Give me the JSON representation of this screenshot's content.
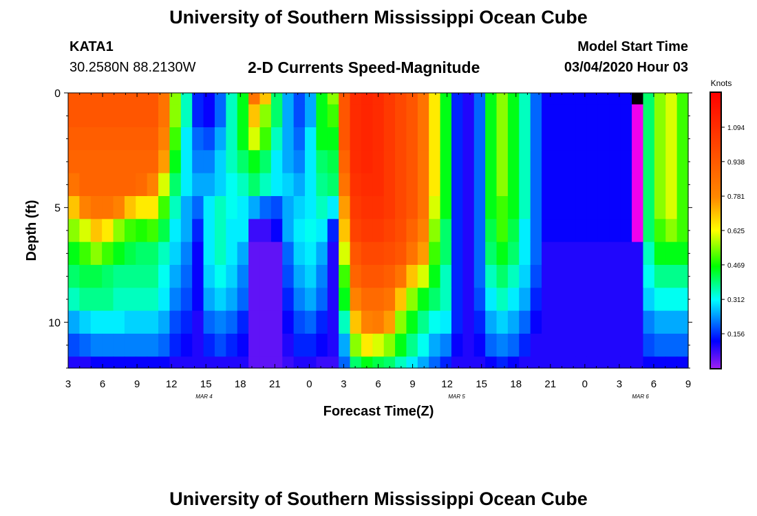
{
  "header": {
    "title": "University of Southern Mississippi Ocean Cube",
    "station_id": "KATA1",
    "station_coords": "30.2580N 88.2130W",
    "plot_title": "2-D Currents Speed-Magnitude",
    "model_start_label": "Model Start Time",
    "model_start_value": "03/04/2020 Hour 03"
  },
  "footer": {
    "title": "University of Southern Mississippi Ocean Cube"
  },
  "chart_data": {
    "type": "heatmap",
    "title": "2-D Currents Speed-Magnitude",
    "xlabel": "Forecast Time(Z)",
    "ylabel": "Depth (ft)",
    "x_start_hour": 3,
    "x_hours": 54,
    "x_tick_labels": [
      "3",
      "6",
      "9",
      "12",
      "15",
      "18",
      "21",
      "0",
      "3",
      "6",
      "9",
      "12",
      "15",
      "18",
      "21",
      "0",
      "3",
      "6",
      "9"
    ],
    "date_labels": [
      {
        "label": "MAR 4",
        "at_hour": 11
      },
      {
        "label": "MAR 5",
        "at_hour": 33
      },
      {
        "label": "MAR 6",
        "at_hour": 49
      }
    ],
    "y_ticks": [
      0,
      5,
      10
    ],
    "ylim": [
      0,
      12
    ],
    "y_inverted": true,
    "colorbar": {
      "title": "Knots",
      "tick_labels": [
        "1.094",
        "0.938",
        "0.781",
        "0.625",
        "0.469",
        "0.312",
        "0.156"
      ],
      "range": [
        0.0,
        1.25
      ]
    },
    "value_unit": "Knots",
    "depth_bands": [
      {
        "from": 0,
        "to": 0.5
      },
      {
        "from": 0.5,
        "to": 1.5
      },
      {
        "from": 1.5,
        "to": 2.5
      },
      {
        "from": 2.5,
        "to": 3.5
      },
      {
        "from": 3.5,
        "to": 4.5
      },
      {
        "from": 4.5,
        "to": 5.5
      },
      {
        "from": 5.5,
        "to": 6.5
      },
      {
        "from": 6.5,
        "to": 7.5
      },
      {
        "from": 7.5,
        "to": 8.5
      },
      {
        "from": 8.5,
        "to": 9.5
      },
      {
        "from": 9.5,
        "to": 10.5
      },
      {
        "from": 10.5,
        "to": 11.5
      },
      {
        "from": 11.5,
        "to": 12
      }
    ],
    "values": [
      [
        0.95,
        0.95,
        0.95,
        0.95,
        0.95,
        0.95,
        0.95,
        0.95,
        0.85,
        0.55,
        0.35,
        0.15,
        0.12,
        0.2,
        0.35,
        0.45,
        0.85,
        0.7,
        0.4,
        0.25,
        0.18,
        0.25,
        0.45,
        0.55,
        0.95,
        1.1,
        1.12,
        1.1,
        1.05,
        1.0,
        0.95,
        0.85,
        0.65,
        0.45,
        0.15,
        0.1,
        0.2,
        0.45,
        0.55,
        0.45,
        0.35,
        0.2,
        0.12,
        0.12,
        0.12,
        0.12,
        0.12,
        0.12,
        0.12,
        0.12,
        0.12,
        0.4,
        0.55,
        0.6,
        0.5
      ],
      [
        0.95,
        0.95,
        0.95,
        0.95,
        0.95,
        0.95,
        0.95,
        0.95,
        0.85,
        0.55,
        0.35,
        0.15,
        0.12,
        0.2,
        0.35,
        0.45,
        0.7,
        0.55,
        0.4,
        0.25,
        0.18,
        0.25,
        0.45,
        0.5,
        0.95,
        1.1,
        1.12,
        1.1,
        1.05,
        1.0,
        0.95,
        0.85,
        0.65,
        0.45,
        0.15,
        0.1,
        0.2,
        0.45,
        0.55,
        0.45,
        0.35,
        0.2,
        0.12,
        0.12,
        0.12,
        0.12,
        0.12,
        0.12,
        0.12,
        0.12,
        0.12,
        0.4,
        0.55,
        0.6,
        0.5
      ],
      [
        0.92,
        0.92,
        0.92,
        0.92,
        0.92,
        0.92,
        0.92,
        0.92,
        0.8,
        0.5,
        0.3,
        0.2,
        0.18,
        0.25,
        0.35,
        0.45,
        0.6,
        0.5,
        0.35,
        0.25,
        0.2,
        0.3,
        0.45,
        0.45,
        0.95,
        1.1,
        1.12,
        1.1,
        1.05,
        1.0,
        0.95,
        0.85,
        0.65,
        0.45,
        0.15,
        0.1,
        0.2,
        0.45,
        0.55,
        0.45,
        0.35,
        0.2,
        0.12,
        0.12,
        0.12,
        0.12,
        0.12,
        0.12,
        0.12,
        0.12,
        0.12,
        0.4,
        0.55,
        0.6,
        0.5
      ],
      [
        0.9,
        0.9,
        0.9,
        0.9,
        0.9,
        0.9,
        0.9,
        0.9,
        0.75,
        0.45,
        0.3,
        0.22,
        0.22,
        0.28,
        0.35,
        0.4,
        0.45,
        0.4,
        0.3,
        0.25,
        0.22,
        0.3,
        0.4,
        0.42,
        0.9,
        1.1,
        1.12,
        1.1,
        1.05,
        1.0,
        0.95,
        0.85,
        0.65,
        0.45,
        0.15,
        0.1,
        0.2,
        0.45,
        0.55,
        0.45,
        0.35,
        0.2,
        0.12,
        0.12,
        0.12,
        0.12,
        0.12,
        0.12,
        0.12,
        0.12,
        0.12,
        0.4,
        0.55,
        0.6,
        0.5
      ],
      [
        0.85,
        0.9,
        0.9,
        0.9,
        0.9,
        0.9,
        0.88,
        0.8,
        0.6,
        0.4,
        0.3,
        0.25,
        0.25,
        0.28,
        0.32,
        0.35,
        0.4,
        0.35,
        0.3,
        0.28,
        0.25,
        0.3,
        0.38,
        0.4,
        0.85,
        1.08,
        1.1,
        1.1,
        1.05,
        1.0,
        0.95,
        0.85,
        0.65,
        0.45,
        0.15,
        0.1,
        0.2,
        0.45,
        0.55,
        0.45,
        0.35,
        0.2,
        0.12,
        0.12,
        0.12,
        0.12,
        0.12,
        0.12,
        0.12,
        0.12,
        0.12,
        0.4,
        0.55,
        0.6,
        0.5
      ],
      [
        0.7,
        0.8,
        0.85,
        0.85,
        0.8,
        0.7,
        0.65,
        0.65,
        0.5,
        0.35,
        0.25,
        0.2,
        0.3,
        0.35,
        0.32,
        0.3,
        0.25,
        0.2,
        0.18,
        0.25,
        0.28,
        0.3,
        0.35,
        0.3,
        0.75,
        1.05,
        1.08,
        1.08,
        1.05,
        1.0,
        0.95,
        0.85,
        0.6,
        0.45,
        0.15,
        0.1,
        0.2,
        0.45,
        0.5,
        0.45,
        0.35,
        0.2,
        0.12,
        0.12,
        0.12,
        0.12,
        0.12,
        0.12,
        0.12,
        0.12,
        0.12,
        0.4,
        0.55,
        0.6,
        0.5
      ],
      [
        0.55,
        0.6,
        0.7,
        0.65,
        0.55,
        0.5,
        0.48,
        0.5,
        0.42,
        0.3,
        0.25,
        0.15,
        0.3,
        0.35,
        0.3,
        0.3,
        0.08,
        0.08,
        0.12,
        0.25,
        0.3,
        0.32,
        0.3,
        0.15,
        0.7,
        1.02,
        1.05,
        1.05,
        1.02,
        0.98,
        0.9,
        0.8,
        0.55,
        0.4,
        0.15,
        0.1,
        0.2,
        0.42,
        0.5,
        0.42,
        0.3,
        0.2,
        0.12,
        0.12,
        0.12,
        0.12,
        0.12,
        0.12,
        0.12,
        0.12,
        0.12,
        0.4,
        0.5,
        0.55,
        0.5
      ],
      [
        0.45,
        0.5,
        0.55,
        0.5,
        0.45,
        0.42,
        0.4,
        0.4,
        0.35,
        0.28,
        0.22,
        0.12,
        0.3,
        0.35,
        0.3,
        0.25,
        0.05,
        0.05,
        0.05,
        0.2,
        0.28,
        0.3,
        0.25,
        0.1,
        0.6,
        0.95,
        1.0,
        1.0,
        0.98,
        0.95,
        0.85,
        0.75,
        0.5,
        0.4,
        0.15,
        0.1,
        0.2,
        0.4,
        0.45,
        0.4,
        0.3,
        0.2,
        0.1,
        0.1,
        0.1,
        0.1,
        0.1,
        0.1,
        0.1,
        0.1,
        0.1,
        0.35,
        0.45,
        0.45,
        0.45
      ],
      [
        0.4,
        0.42,
        0.42,
        0.4,
        0.38,
        0.38,
        0.38,
        0.38,
        0.32,
        0.25,
        0.2,
        0.12,
        0.28,
        0.32,
        0.28,
        0.22,
        0.05,
        0.05,
        0.05,
        0.18,
        0.25,
        0.28,
        0.22,
        0.1,
        0.5,
        0.9,
        0.95,
        0.95,
        0.92,
        0.85,
        0.7,
        0.6,
        0.45,
        0.35,
        0.15,
        0.1,
        0.2,
        0.35,
        0.4,
        0.35,
        0.28,
        0.18,
        0.1,
        0.1,
        0.1,
        0.1,
        0.1,
        0.1,
        0.1,
        0.1,
        0.1,
        0.32,
        0.38,
        0.38,
        0.38
      ],
      [
        0.35,
        0.38,
        0.38,
        0.38,
        0.35,
        0.35,
        0.35,
        0.35,
        0.3,
        0.22,
        0.18,
        0.12,
        0.25,
        0.28,
        0.25,
        0.2,
        0.05,
        0.05,
        0.05,
        0.15,
        0.22,
        0.25,
        0.2,
        0.1,
        0.45,
        0.8,
        0.88,
        0.88,
        0.85,
        0.7,
        0.55,
        0.45,
        0.4,
        0.35,
        0.15,
        0.1,
        0.18,
        0.3,
        0.35,
        0.3,
        0.25,
        0.15,
        0.1,
        0.1,
        0.1,
        0.1,
        0.1,
        0.1,
        0.1,
        0.1,
        0.1,
        0.28,
        0.32,
        0.32,
        0.32
      ],
      [
        0.25,
        0.28,
        0.3,
        0.3,
        0.3,
        0.28,
        0.28,
        0.28,
        0.25,
        0.18,
        0.15,
        0.1,
        0.2,
        0.22,
        0.2,
        0.15,
        0.05,
        0.05,
        0.05,
        0.12,
        0.18,
        0.2,
        0.15,
        0.1,
        0.35,
        0.7,
        0.8,
        0.82,
        0.75,
        0.55,
        0.45,
        0.38,
        0.32,
        0.3,
        0.15,
        0.1,
        0.15,
        0.25,
        0.28,
        0.25,
        0.2,
        0.12,
        0.1,
        0.1,
        0.1,
        0.1,
        0.1,
        0.1,
        0.1,
        0.1,
        0.1,
        0.22,
        0.25,
        0.25,
        0.25
      ],
      [
        0.18,
        0.2,
        0.22,
        0.22,
        0.22,
        0.22,
        0.22,
        0.22,
        0.2,
        0.15,
        0.12,
        0.1,
        0.15,
        0.18,
        0.15,
        0.12,
        0.05,
        0.05,
        0.05,
        0.1,
        0.15,
        0.15,
        0.12,
        0.1,
        0.25,
        0.55,
        0.65,
        0.6,
        0.55,
        0.45,
        0.38,
        0.32,
        0.25,
        0.22,
        0.12,
        0.1,
        0.12,
        0.2,
        0.22,
        0.2,
        0.15,
        0.1,
        0.1,
        0.1,
        0.1,
        0.1,
        0.1,
        0.1,
        0.1,
        0.1,
        0.1,
        0.18,
        0.2,
        0.2,
        0.2
      ],
      [
        0.1,
        0.1,
        0.12,
        0.12,
        0.12,
        0.12,
        0.12,
        0.12,
        0.12,
        0.1,
        0.1,
        0.1,
        0.1,
        0.1,
        0.1,
        0.1,
        0.05,
        0.05,
        0.05,
        0.08,
        0.1,
        0.1,
        0.08,
        0.08,
        0.2,
        0.4,
        0.45,
        0.42,
        0.4,
        0.35,
        0.3,
        0.25,
        0.2,
        0.15,
        0.1,
        0.1,
        0.1,
        0.12,
        0.15,
        0.12,
        0.1,
        0.1,
        0.1,
        0.1,
        0.1,
        0.1,
        0.1,
        0.1,
        0.1,
        0.1,
        0.1,
        0.12,
        0.12,
        0.12,
        0.12
      ]
    ],
    "missing_cells": [
      {
        "hour": 50,
        "depth_band": 0
      }
    ],
    "column_overrides_color": [
      {
        "hour": 50,
        "from_band": 0,
        "to_band": 6,
        "color": "#ee00ee"
      }
    ]
  }
}
